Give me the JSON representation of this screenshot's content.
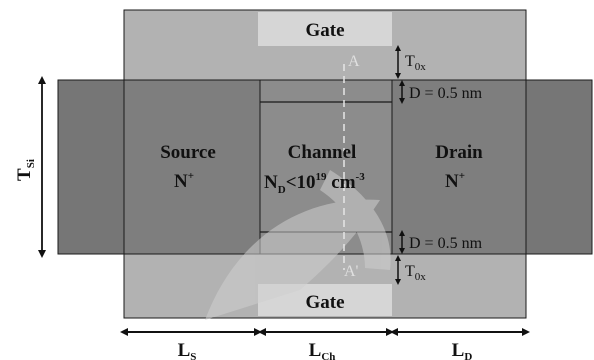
{
  "labels": {
    "gate_top": "Gate",
    "gate_bottom": "Gate",
    "source": "Source",
    "source_doping": "N",
    "source_doping_sup": "+",
    "channel": "Channel",
    "channel_doping_main": "N",
    "channel_doping_sub": "D",
    "channel_doping_rel": "<10",
    "channel_doping_exp": "19",
    "channel_doping_unit": " cm",
    "channel_doping_unit_exp": "-3",
    "drain": "Drain",
    "drain_doping": "N",
    "drain_doping_sup": "+",
    "cut_top": "A",
    "cut_bottom": "A'",
    "tox_top_main": "T",
    "tox_top_sub": "0x",
    "tox_bottom_main": "T",
    "tox_bottom_sub": "0x",
    "d_top": "D = 0.5 nm",
    "d_bottom": "D = 0.5 nm",
    "tsi_main": "T",
    "tsi_sub": "Si",
    "ls_main": "L",
    "ls_sub": "S",
    "lch_main": "L",
    "lch_sub": "Ch",
    "ld_main": "L",
    "ld_sub": "D"
  },
  "colors": {
    "gate_oxide": "#b2b2b2",
    "gate_contact": "#d6d6d6",
    "silicon": "#767676",
    "channel": "#8c8c8c",
    "outline": "#1a1a1a",
    "cut_line": "#e8e8e8",
    "watermark": "#cfcfcf"
  }
}
